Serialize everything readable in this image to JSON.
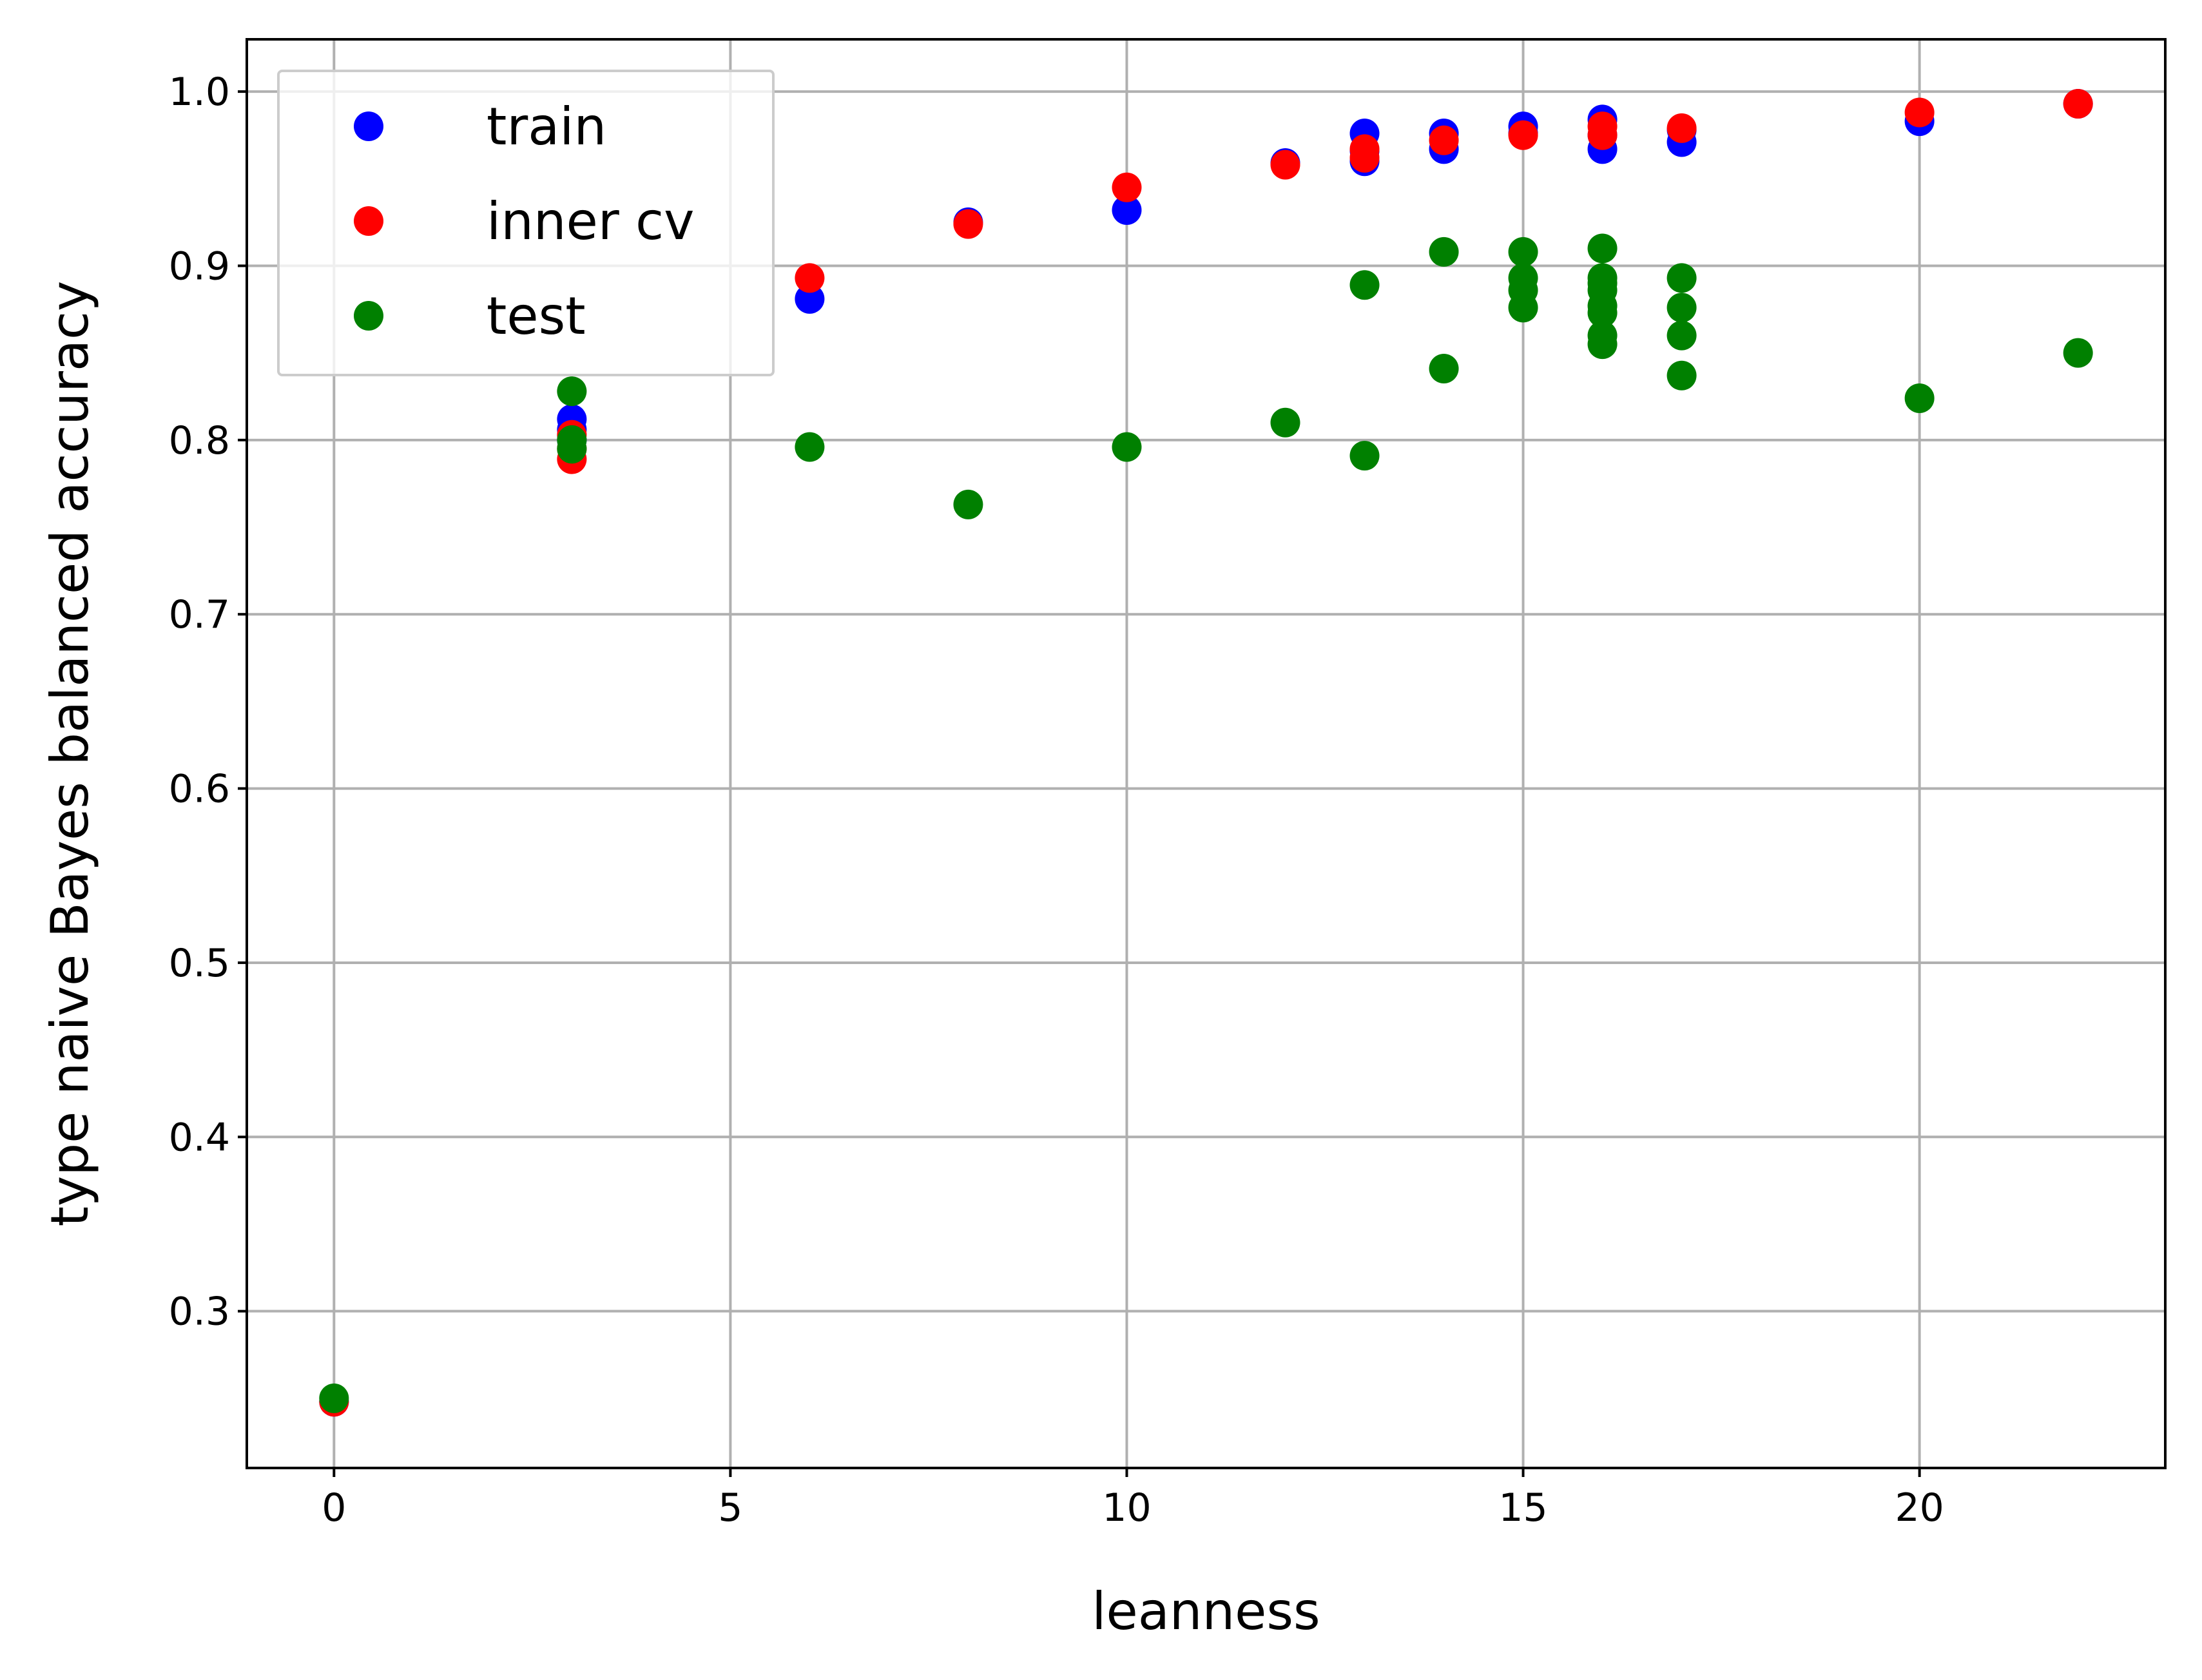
{
  "chart_data": {
    "type": "scatter",
    "title": "",
    "xlabel": "leanness",
    "ylabel": "type naive Bayes balanced accuracy",
    "xlim": [
      -1.1,
      23.1
    ],
    "ylim": [
      0.21,
      1.03
    ],
    "xticks": [
      0,
      5,
      10,
      15,
      20
    ],
    "xtick_labels": [
      "0",
      "5",
      "10",
      "15",
      "20"
    ],
    "yticks": [
      0.3,
      0.4,
      0.5,
      0.6,
      0.7,
      0.8,
      0.9,
      1.0
    ],
    "ytick_labels": [
      "0.3",
      "0.4",
      "0.5",
      "0.6",
      "0.7",
      "0.8",
      "0.9",
      "1.0"
    ],
    "grid": true,
    "legend_position": "top-left",
    "series": [
      {
        "name": "train",
        "color": "#0000ff",
        "x": [
          0,
          3,
          3,
          3,
          6,
          8,
          10,
          12,
          13,
          13,
          13,
          14,
          14,
          15,
          15,
          16,
          16,
          16,
          17,
          17,
          20,
          22
        ],
        "y": [
          0.248,
          0.812,
          0.806,
          0.8,
          0.881,
          0.925,
          0.932,
          0.959,
          0.976,
          0.966,
          0.96,
          0.976,
          0.967,
          0.98,
          0.976,
          0.984,
          0.975,
          0.967,
          0.978,
          0.971,
          0.983,
          0.993
        ]
      },
      {
        "name": "inner cv",
        "color": "#ff0000",
        "x": [
          0,
          3,
          3,
          3,
          6,
          8,
          10,
          12,
          13,
          13,
          14,
          15,
          16,
          16,
          17,
          20,
          22
        ],
        "y": [
          0.248,
          0.803,
          0.795,
          0.789,
          0.893,
          0.924,
          0.945,
          0.958,
          0.967,
          0.962,
          0.972,
          0.975,
          0.98,
          0.975,
          0.979,
          0.988,
          0.993
        ]
      },
      {
        "name": "test",
        "color": "#008000",
        "x": [
          0,
          3,
          3,
          3,
          6,
          8,
          10,
          12,
          13,
          13,
          14,
          14,
          15,
          15,
          15,
          15,
          16,
          16,
          16,
          16,
          16,
          16,
          16,
          16,
          17,
          17,
          17,
          17,
          20,
          22
        ],
        "y": [
          0.25,
          0.828,
          0.8,
          0.795,
          0.796,
          0.763,
          0.796,
          0.81,
          0.889,
          0.791,
          0.908,
          0.841,
          0.908,
          0.893,
          0.886,
          0.876,
          0.91,
          0.893,
          0.886,
          0.877,
          0.873,
          0.86,
          0.855,
          0.89,
          0.893,
          0.876,
          0.86,
          0.837,
          0.824,
          0.85
        ]
      }
    ]
  }
}
